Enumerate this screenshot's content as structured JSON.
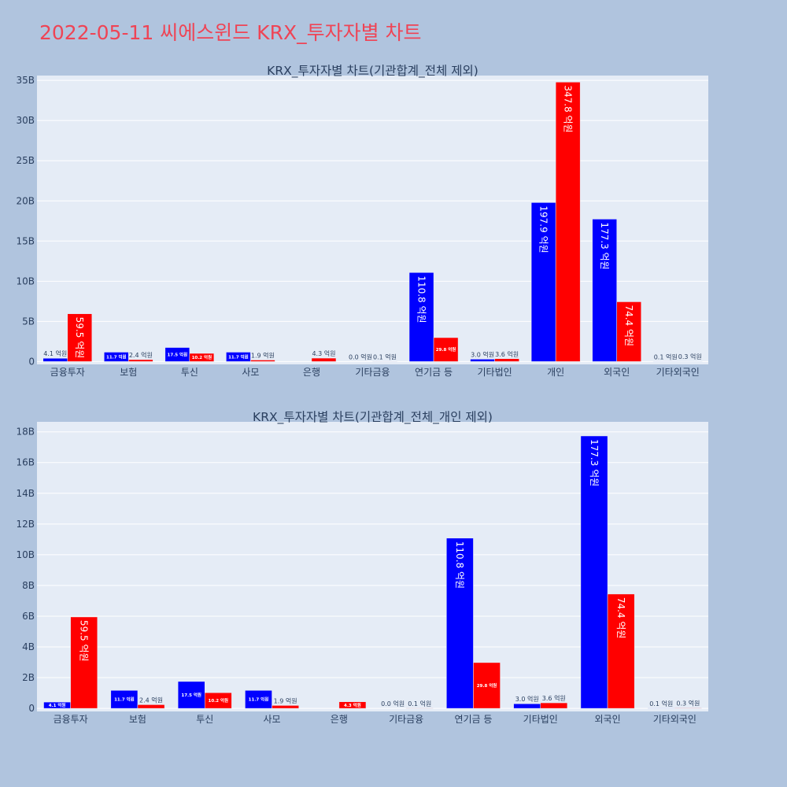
{
  "page_title": "2022-05-11 씨에스윈드 KRX_투자자별 차트",
  "colors": {
    "page_bg": "#b0c4de",
    "plot_bg": "#e5ecf6",
    "buy": "#0000ff",
    "sell": "#ff0000",
    "title": "#ef4455"
  },
  "chart_data": [
    {
      "type": "bar",
      "title": "KRX_투자자별 차트(기관합계_전체 제외)",
      "categories": [
        "금융투자",
        "보험",
        "투신",
        "사모",
        "은행",
        "기타금융",
        "연기금 등",
        "기타법인",
        "개인",
        "외국인",
        "기타외국인"
      ],
      "series": [
        {
          "color": "#0000ff",
          "values": [
            0.41,
            1.17,
            1.75,
            1.17,
            0.0,
            0.0,
            11.08,
            0.3,
            19.79,
            17.73,
            0.01
          ],
          "labels": [
            "4.1 억원",
            "11.7 억원",
            "17.5 억원",
            "11.7 억원",
            "",
            "0.0 억원",
            "110.8 억원",
            "3.0 억원",
            "197.9 억원",
            "177.3 억원",
            "0.1 억원"
          ]
        },
        {
          "color": "#ff0000",
          "values": [
            5.95,
            0.24,
            1.02,
            0.19,
            0.43,
            0.01,
            2.98,
            0.36,
            34.78,
            7.44,
            0.03
          ],
          "labels": [
            "59.5 억원",
            "2.4 억원",
            "10.2 억원",
            "1.9 억원",
            "4.3 억원",
            "0.1 억원",
            "29.8 억원",
            "3.6 억원",
            "347.8 억원",
            "74.4 억원",
            "0.3 억원"
          ]
        }
      ],
      "yticks": [
        0,
        5,
        10,
        15,
        20,
        25,
        30,
        35
      ],
      "ytick_labels": [
        "0",
        "5B",
        "10B",
        "15B",
        "20B",
        "25B",
        "30B",
        "35B"
      ],
      "ylim": [
        -0.35,
        35.6
      ],
      "grid": true,
      "legend": "none"
    },
    {
      "type": "bar",
      "title": "KRX_투자자별 차트(기관합계_전체_개인 제외)",
      "categories": [
        "금융투자",
        "보험",
        "투신",
        "사모",
        "은행",
        "기타금융",
        "연기금 등",
        "기타법인",
        "외국인",
        "기타외국인"
      ],
      "series": [
        {
          "color": "#0000ff",
          "values": [
            0.41,
            1.17,
            1.75,
            1.17,
            0.0,
            0.0,
            11.08,
            0.3,
            17.73,
            0.01
          ],
          "labels": [
            "4.1 억원",
            "11.7 억원",
            "17.5 억원",
            "11.7 억원",
            "",
            "0.0 억원",
            "110.8 억원",
            "3.0 억원",
            "177.3 억원",
            "0.1 억원"
          ]
        },
        {
          "color": "#ff0000",
          "values": [
            5.95,
            0.24,
            1.02,
            0.19,
            0.43,
            0.01,
            2.98,
            0.36,
            7.44,
            0.03
          ],
          "labels": [
            "59.5 억원",
            "2.4 억원",
            "10.2 억원",
            "1.9 억원",
            "4.3 억원",
            "0.1 억원",
            "29.8 억원",
            "3.6 억원",
            "74.4 억원",
            "0.3 억원"
          ]
        }
      ],
      "yticks": [
        0,
        2,
        4,
        6,
        8,
        10,
        12,
        14,
        16,
        18
      ],
      "ytick_labels": [
        "0",
        "2B",
        "4B",
        "6B",
        "8B",
        "10B",
        "12B",
        "14B",
        "16B",
        "18B"
      ],
      "ylim": [
        -0.2,
        18.65
      ],
      "grid": true,
      "legend": "none"
    }
  ]
}
